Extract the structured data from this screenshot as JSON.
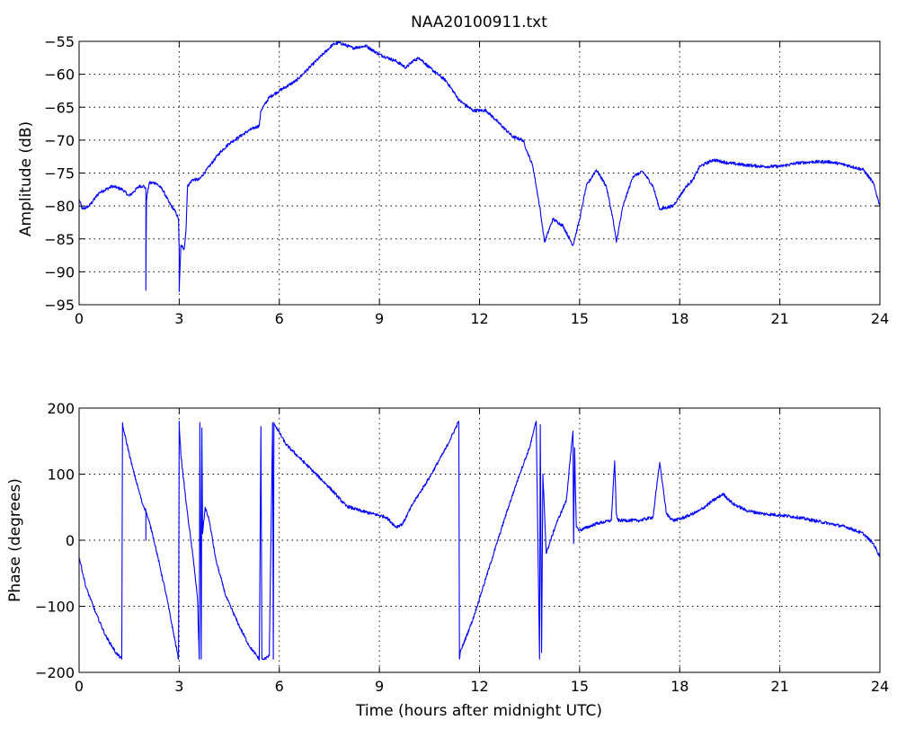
{
  "chart_data": [
    {
      "type": "line",
      "title": "NAA20100911.txt",
      "xlabel": "",
      "ylabel": "Amplitude (dB)",
      "xlim": [
        0,
        24
      ],
      "ylim": [
        -95,
        -55
      ],
      "xticks": [
        0,
        3,
        6,
        9,
        12,
        15,
        18,
        21,
        24
      ],
      "yticks": [
        -55,
        -60,
        -65,
        -70,
        -75,
        -80,
        -85,
        -90,
        -95
      ],
      "grid": true,
      "color": "#0000ff",
      "series": [
        {
          "x": [
            0,
            0.1,
            0.3,
            0.6,
            1.0,
            1.3,
            1.5,
            1.8,
            1.95,
            2.0,
            2.0,
            2.02,
            2.1,
            2.3,
            2.5,
            2.7,
            2.9,
            2.98,
            3.0,
            3.0,
            3.05,
            3.15,
            3.2,
            3.25,
            3.4,
            3.6,
            3.9,
            4.2,
            4.5,
            4.8,
            5.1,
            5.4,
            5.45,
            5.7,
            6.0,
            6.5,
            7.0,
            7.3,
            7.6,
            7.8,
            8.2,
            8.6,
            9.0,
            9.5,
            9.8,
            10.0,
            10.2,
            10.5,
            11.0,
            11.4,
            11.8,
            12.2,
            12.6,
            13.0,
            13.3,
            13.6,
            13.8,
            13.95,
            14.2,
            14.5,
            14.8,
            15.0,
            15.2,
            15.5,
            15.8,
            16.0,
            16.1,
            16.3,
            16.6,
            16.9,
            17.2,
            17.4,
            17.8,
            18.2,
            18.4,
            18.6,
            19.0,
            19.5,
            20.0,
            20.5,
            21.0,
            21.5,
            22.0,
            22.5,
            23.0,
            23.5,
            23.8,
            24.0
          ],
          "values": [
            -79,
            -80.5,
            -80,
            -78,
            -77,
            -77.5,
            -78.5,
            -77,
            -77,
            -77.5,
            -92.8,
            -79,
            -76.5,
            -76.5,
            -77.5,
            -79.5,
            -81,
            -82,
            -87,
            -93,
            -86,
            -86.5,
            -84,
            -77,
            -76,
            -76,
            -74,
            -72,
            -70.5,
            -69.5,
            -68.5,
            -67.8,
            -65.5,
            -63.5,
            -62.5,
            -61,
            -58.5,
            -57,
            -55.5,
            -55.2,
            -56,
            -55.7,
            -57,
            -58,
            -59,
            -58,
            -57.5,
            -59,
            -61,
            -64,
            -65.5,
            -65.5,
            -67.5,
            -69.5,
            -70,
            -74,
            -80,
            -85.5,
            -82,
            -83,
            -86,
            -82,
            -77,
            -74.5,
            -77,
            -82,
            -85.5,
            -80,
            -75.5,
            -74.8,
            -77,
            -80.5,
            -80,
            -77,
            -76,
            -74,
            -73,
            -73.5,
            -73.8,
            -74,
            -74,
            -73.5,
            -73.3,
            -73.3,
            -73.8,
            -74.5,
            -76.5,
            -80
          ]
        }
      ]
    },
    {
      "type": "line",
      "title": "",
      "xlabel": "Time (hours after midnight UTC)",
      "ylabel": "Phase (degrees)",
      "xlim": [
        0,
        24
      ],
      "ylim": [
        -200,
        200
      ],
      "xticks": [
        0,
        3,
        6,
        9,
        12,
        15,
        18,
        21,
        24
      ],
      "yticks": [
        200,
        100,
        0,
        -100,
        -200
      ],
      "grid": true,
      "color": "#0000ff",
      "series": [
        {
          "x": [
            0,
            0.2,
            0.5,
            0.8,
            1.1,
            1.28,
            1.3,
            1.32,
            1.6,
            1.9,
            2.0,
            2.0,
            2.0,
            2.0,
            2.2,
            2.6,
            2.98,
            3.0,
            3.0,
            3.05,
            3.2,
            3.35,
            3.45,
            3.55,
            3.6,
            3.62,
            3.66,
            3.68,
            3.7,
            3.78,
            3.9,
            4.1,
            4.4,
            4.8,
            5.1,
            5.4,
            5.45,
            5.48,
            5.5,
            5.55,
            5.7,
            5.8,
            5.82,
            5.84,
            5.9,
            6.2,
            6.6,
            7.0,
            7.5,
            8.0,
            8.4,
            8.8,
            9.2,
            9.5,
            9.7,
            10.0,
            10.5,
            11.0,
            11.38,
            11.4,
            11.42,
            11.8,
            12.3,
            12.8,
            13.2,
            13.5,
            13.7,
            13.8,
            13.82,
            13.86,
            13.9,
            14.0,
            14.3,
            14.6,
            14.8,
            14.82,
            14.85,
            14.9,
            15.0,
            15.5,
            15.95,
            16.05,
            16.1,
            16.15,
            16.3,
            16.8,
            17.2,
            17.4,
            17.5,
            17.6,
            17.8,
            18.0,
            18.3,
            18.6,
            19.0,
            19.3,
            19.6,
            20.0,
            20.5,
            21.0,
            21.5,
            22.0,
            22.5,
            23.0,
            23.5,
            23.8,
            24.0
          ],
          "values": [
            -25,
            -70,
            -110,
            -145,
            -170,
            -180,
            178,
            170,
            110,
            55,
            45,
            40,
            0,
            45,
            10,
            -80,
            -180,
            180,
            175,
            130,
            60,
            0,
            -40,
            -90,
            -180,
            178,
            -180,
            170,
            10,
            50,
            30,
            -30,
            -85,
            -130,
            -160,
            -180,
            172,
            -180,
            -180,
            -180,
            -175,
            178,
            -180,
            178,
            172,
            145,
            125,
            105,
            80,
            52,
            45,
            40,
            35,
            20,
            25,
            55,
            95,
            140,
            180,
            -180,
            -170,
            -120,
            -40,
            40,
            100,
            140,
            180,
            -180,
            175,
            -170,
            100,
            -20,
            25,
            60,
            165,
            -5,
            140,
            20,
            15,
            25,
            30,
            120,
            40,
            30,
            30,
            30,
            35,
            118,
            80,
            40,
            30,
            32,
            38,
            45,
            60,
            70,
            55,
            45,
            40,
            38,
            35,
            30,
            25,
            20,
            10,
            -5,
            -25
          ]
        }
      ]
    }
  ]
}
